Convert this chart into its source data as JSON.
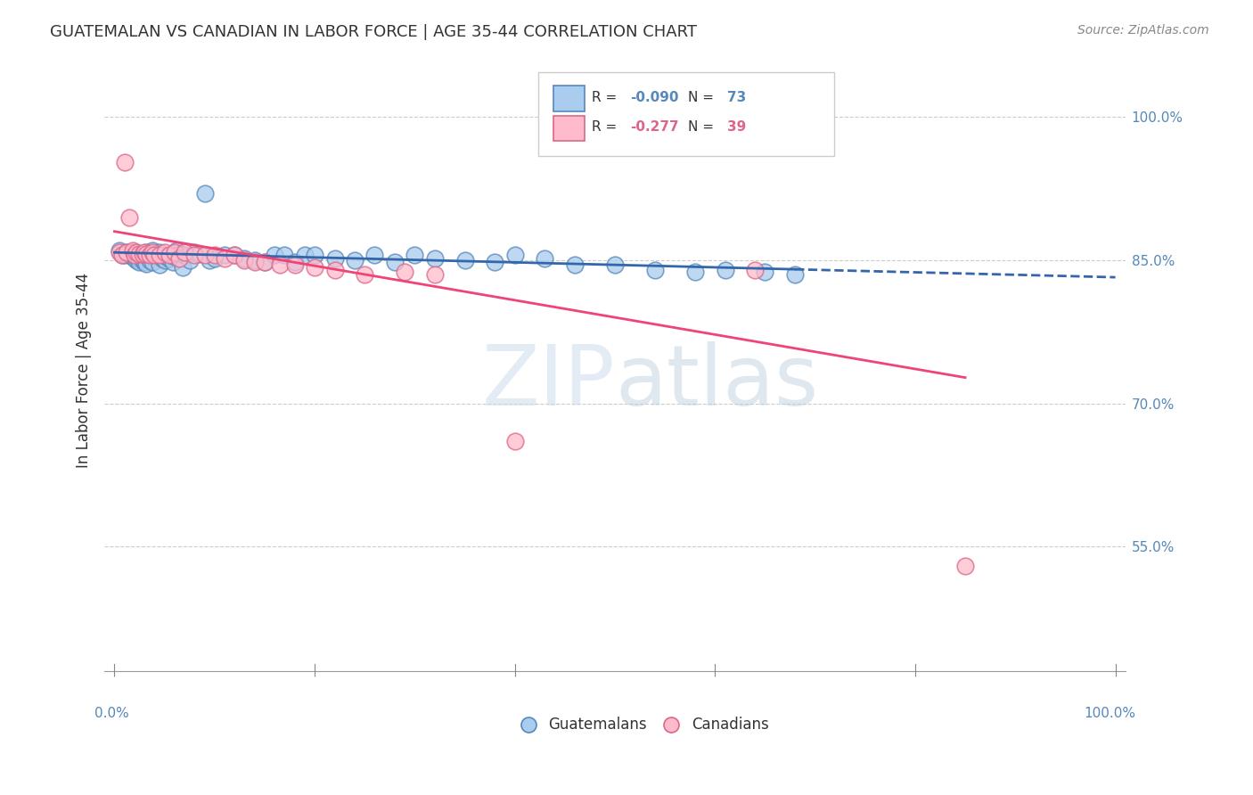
{
  "title": "GUATEMALAN VS CANADIAN IN LABOR FORCE | AGE 35-44 CORRELATION CHART",
  "source": "Source: ZipAtlas.com",
  "ylabel": "In Labor Force | Age 35-44",
  "ytick_labels": [
    "100.0%",
    "85.0%",
    "70.0%",
    "55.0%"
  ],
  "ytick_values": [
    1.0,
    0.85,
    0.7,
    0.55
  ],
  "xlim": [
    -0.01,
    1.01
  ],
  "ylim": [
    0.42,
    1.05
  ],
  "blue_color": "#5588BB",
  "blue_fill": "#AACCEE",
  "pink_color": "#DD6688",
  "pink_fill": "#FFBBCC",
  "trend_blue": "#3366AA",
  "trend_pink": "#EE4477",
  "R_blue": -0.09,
  "N_blue": 73,
  "R_pink": -0.277,
  "N_pink": 39,
  "watermark_zip": "ZIP",
  "watermark_atlas": "atlas",
  "blue_x": [
    0.005,
    0.008,
    0.01,
    0.012,
    0.015,
    0.015,
    0.018,
    0.018,
    0.02,
    0.02,
    0.022,
    0.022,
    0.025,
    0.025,
    0.025,
    0.028,
    0.028,
    0.03,
    0.03,
    0.03,
    0.032,
    0.032,
    0.035,
    0.035,
    0.038,
    0.038,
    0.04,
    0.042,
    0.045,
    0.045,
    0.048,
    0.05,
    0.052,
    0.055,
    0.058,
    0.06,
    0.062,
    0.065,
    0.068,
    0.07,
    0.075,
    0.08,
    0.085,
    0.09,
    0.095,
    0.1,
    0.11,
    0.12,
    0.13,
    0.14,
    0.15,
    0.16,
    0.17,
    0.18,
    0.19,
    0.2,
    0.22,
    0.24,
    0.26,
    0.28,
    0.3,
    0.32,
    0.35,
    0.38,
    0.4,
    0.43,
    0.46,
    0.5,
    0.54,
    0.58,
    0.61,
    0.65,
    0.68
  ],
  "blue_y": [
    0.86,
    0.855,
    0.855,
    0.858,
    0.855,
    0.857,
    0.858,
    0.854,
    0.852,
    0.856,
    0.85,
    0.854,
    0.855,
    0.852,
    0.848,
    0.856,
    0.85,
    0.854,
    0.852,
    0.848,
    0.858,
    0.846,
    0.854,
    0.85,
    0.86,
    0.848,
    0.856,
    0.855,
    0.858,
    0.845,
    0.852,
    0.85,
    0.854,
    0.852,
    0.848,
    0.854,
    0.86,
    0.856,
    0.842,
    0.855,
    0.85,
    0.858,
    0.856,
    0.92,
    0.85,
    0.852,
    0.855,
    0.855,
    0.852,
    0.85,
    0.848,
    0.855,
    0.855,
    0.848,
    0.855,
    0.855,
    0.852,
    0.85,
    0.855,
    0.848,
    0.855,
    0.852,
    0.85,
    0.848,
    0.855,
    0.852,
    0.845,
    0.845,
    0.84,
    0.838,
    0.84,
    0.838,
    0.835
  ],
  "pink_x": [
    0.005,
    0.008,
    0.01,
    0.012,
    0.015,
    0.018,
    0.02,
    0.022,
    0.025,
    0.028,
    0.03,
    0.032,
    0.035,
    0.038,
    0.04,
    0.045,
    0.05,
    0.055,
    0.06,
    0.065,
    0.07,
    0.08,
    0.09,
    0.1,
    0.11,
    0.12,
    0.13,
    0.14,
    0.15,
    0.165,
    0.18,
    0.2,
    0.22,
    0.25,
    0.29,
    0.32,
    0.4,
    0.64,
    0.85
  ],
  "pink_y": [
    0.858,
    0.855,
    0.952,
    0.858,
    0.895,
    0.86,
    0.855,
    0.858,
    0.856,
    0.856,
    0.858,
    0.856,
    0.855,
    0.858,
    0.855,
    0.855,
    0.858,
    0.855,
    0.858,
    0.852,
    0.858,
    0.855,
    0.855,
    0.855,
    0.852,
    0.855,
    0.85,
    0.848,
    0.848,
    0.845,
    0.845,
    0.842,
    0.84,
    0.835,
    0.838,
    0.835,
    0.66,
    0.84,
    0.53
  ],
  "blue_trend_start_y": 0.858,
  "blue_trend_end_y": 0.832,
  "pink_trend_start_y": 0.88,
  "pink_trend_end_y": 0.7
}
